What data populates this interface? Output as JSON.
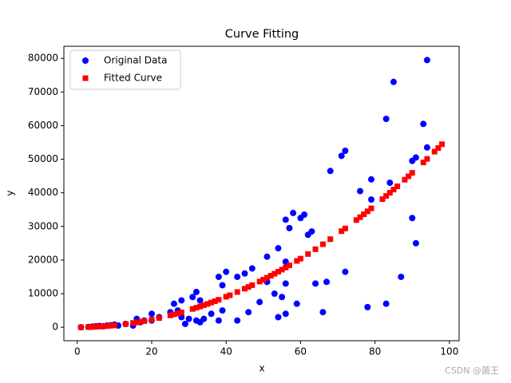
{
  "chart_data": {
    "type": "scatter",
    "title": "Curve Fitting",
    "xlabel": "x",
    "ylabel": "y",
    "xlim": [
      -3.6,
      102.6
    ],
    "ylim": [
      -4000,
      83600
    ],
    "xticks": [
      0,
      20,
      40,
      60,
      80,
      100
    ],
    "yticks": [
      0,
      10000,
      20000,
      30000,
      40000,
      50000,
      60000,
      70000,
      80000
    ],
    "legend": "upper left",
    "watermark": "CSDN @菌王",
    "series": [
      {
        "name": "Original Data",
        "color": "#0000ff",
        "marker": "circle",
        "x": [
          1,
          3,
          4,
          5,
          6,
          7,
          8,
          9,
          10,
          11,
          13,
          15,
          16,
          17,
          18,
          20,
          20,
          22,
          25,
          26,
          27,
          28,
          28,
          29,
          30,
          31,
          32,
          32,
          33,
          34,
          33,
          36,
          38,
          38,
          39,
          39,
          40,
          43,
          43,
          45,
          46,
          47,
          49,
          51,
          51,
          53,
          54,
          54,
          55,
          56,
          56,
          56,
          56,
          57,
          58,
          59,
          60,
          61,
          62,
          63,
          64,
          66,
          67,
          68,
          71,
          72,
          72,
          76,
          78,
          79,
          79,
          83,
          83,
          84,
          85,
          87,
          90,
          90,
          91,
          91,
          93,
          94,
          94
        ],
        "values": [
          0,
          100,
          200,
          300,
          400,
          300,
          500,
          600,
          800,
          500,
          1000,
          500,
          2500,
          1500,
          2000,
          4000,
          2000,
          3000,
          4500,
          7000,
          5000,
          8000,
          3000,
          1000,
          2500,
          9000,
          10500,
          2000,
          1500,
          2500,
          8000,
          4000,
          15000,
          2000,
          12500,
          5000,
          16500,
          15000,
          2000,
          16000,
          4500,
          17500,
          7500,
          21000,
          13500,
          10000,
          23500,
          3000,
          9000,
          32000,
          4000,
          13000,
          19500,
          29500,
          34000,
          7000,
          32500,
          33500,
          27500,
          28500,
          13000,
          4500,
          13500,
          46500,
          51000,
          52500,
          16500,
          40500,
          6000,
          44000,
          38000,
          62000,
          7000,
          43000,
          73000,
          15000,
          49500,
          32500,
          50500,
          25000,
          60500,
          53500,
          79500
        ]
      },
      {
        "name": "Fitted Curve",
        "color": "#ff0000",
        "marker": "square",
        "x": [
          1,
          3,
          4,
          5,
          6,
          7,
          8,
          9,
          10,
          13,
          15,
          16,
          17,
          18,
          20,
          22,
          25,
          26,
          27,
          28,
          31,
          32,
          33,
          34,
          35,
          36,
          37,
          38,
          40,
          41,
          43,
          45,
          46,
          47,
          49,
          50,
          51,
          52,
          53,
          54,
          55,
          56,
          57,
          59,
          60,
          62,
          64,
          66,
          68,
          71,
          72,
          75,
          76,
          77,
          78,
          79,
          82,
          83,
          84,
          85,
          86,
          88,
          89,
          90,
          93,
          94,
          96,
          97,
          98
        ],
        "values": [
          6,
          51,
          91,
          142,
          204,
          278,
          363,
          459,
          567,
          958,
          1276,
          1452,
          1639,
          1837,
          2268,
          2744,
          3544,
          3833,
          4133,
          4445,
          5449,
          5806,
          6175,
          6555,
          6946,
          7348,
          7762,
          8187,
          9072,
          9531,
          10484,
          11482,
          11998,
          12525,
          13614,
          14175,
          14748,
          15332,
          15927,
          16534,
          17152,
          17781,
          18422,
          19737,
          20412,
          21795,
          23224,
          24699,
          26218,
          28582,
          29393,
          31894,
          32750,
          33617,
          34496,
          35386,
          38125,
          39061,
          40008,
          40966,
          41935,
          43908,
          44912,
          45927,
          49040,
          50100,
          52255,
          53349,
          54455
        ]
      }
    ]
  }
}
